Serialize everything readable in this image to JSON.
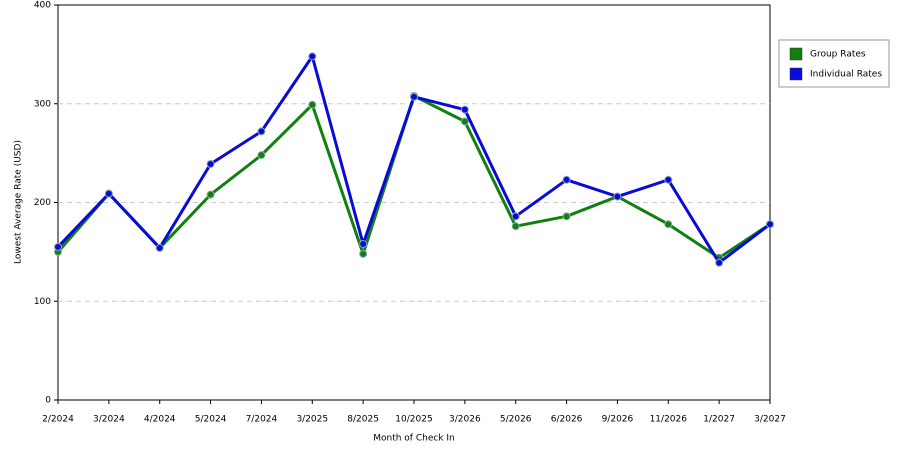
{
  "chart_data": {
    "type": "line",
    "x_label": "Month of Check In",
    "y_label": "Lowest Average Rate (USD)",
    "categories": [
      "2/2024",
      "3/2024",
      "4/2024",
      "5/2024",
      "7/2024",
      "3/2025",
      "8/2025",
      "10/2025",
      "3/2026",
      "5/2026",
      "6/2026",
      "9/2026",
      "11/2026",
      "1/2027",
      "3/2027"
    ],
    "series": [
      {
        "name": "Group Rates",
        "color": "#118011",
        "values": [
          150,
          209,
          154,
          208,
          248,
          299,
          148,
          308,
          282,
          176,
          186,
          206,
          178,
          144,
          178
        ]
      },
      {
        "name": "Individual Rates",
        "color": "#0a0ad8",
        "values": [
          155,
          209,
          154,
          239,
          272,
          348,
          158,
          307,
          294,
          186,
          223,
          206,
          223,
          139,
          178
        ]
      }
    ],
    "ylim": [
      0,
      400
    ],
    "yticks": [
      0,
      100,
      200,
      300,
      400
    ],
    "grid": true,
    "legend": "right"
  }
}
